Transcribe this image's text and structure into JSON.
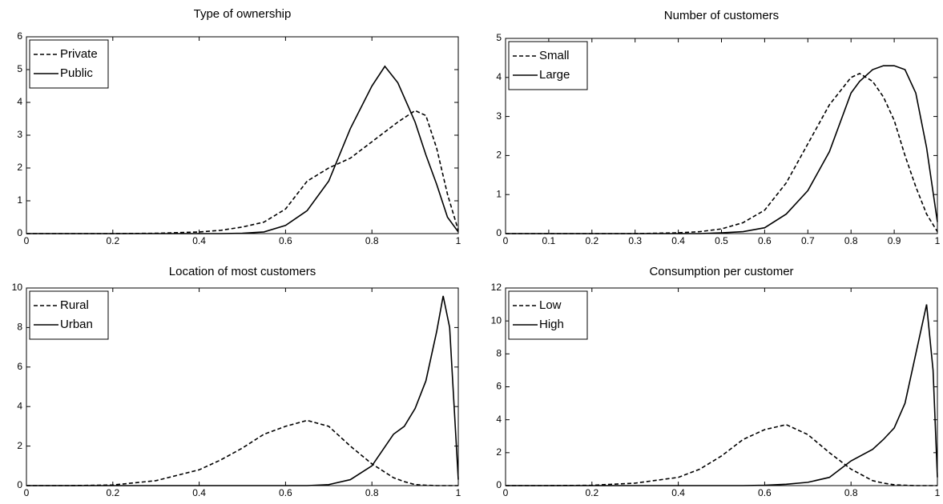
{
  "chart_data": [
    {
      "type": "line",
      "title": "Type of ownership",
      "x": [
        0,
        0.1,
        0.2,
        0.3,
        0.4,
        0.45,
        0.5,
        0.55,
        0.6,
        0.65,
        0.7,
        0.75,
        0.8,
        0.83,
        0.86,
        0.9,
        0.925,
        0.95,
        0.975,
        1
      ],
      "series": [
        {
          "name": "Private",
          "color": "#000000",
          "line_style": "dashed",
          "values": [
            0,
            0,
            0,
            0.01,
            0.05,
            0.1,
            0.2,
            0.35,
            0.75,
            1.6,
            2.0,
            2.3,
            2.8,
            3.1,
            3.4,
            3.75,
            3.6,
            2.6,
            1.2,
            0.1
          ]
        },
        {
          "name": "Public",
          "color": "#000000",
          "line_style": "solid",
          "values": [
            0,
            0,
            0,
            0,
            0,
            0,
            0.01,
            0.05,
            0.25,
            0.7,
            1.6,
            3.2,
            4.5,
            5.1,
            4.6,
            3.4,
            2.4,
            1.5,
            0.5,
            0.05
          ]
        }
      ],
      "xlim": [
        0,
        1
      ],
      "xticks": [
        0,
        0.2,
        0.4,
        0.6,
        0.8,
        1
      ],
      "ylim": [
        0,
        6
      ],
      "yticks": [
        0,
        1,
        2,
        3,
        4,
        5,
        6
      ],
      "legend": "upper left",
      "grid": false
    },
    {
      "type": "line",
      "title": "Number of customers",
      "x": [
        0,
        0.1,
        0.2,
        0.3,
        0.4,
        0.45,
        0.5,
        0.55,
        0.6,
        0.65,
        0.7,
        0.75,
        0.8,
        0.82,
        0.85,
        0.875,
        0.9,
        0.925,
        0.95,
        0.975,
        1
      ],
      "series": [
        {
          "name": "Small",
          "color": "#000000",
          "line_style": "dashed",
          "values": [
            0,
            0,
            0,
            0,
            0.02,
            0.05,
            0.12,
            0.28,
            0.6,
            1.3,
            2.3,
            3.3,
            4.0,
            4.1,
            3.9,
            3.5,
            2.9,
            2.0,
            1.2,
            0.5,
            0.05
          ]
        },
        {
          "name": "Large",
          "color": "#000000",
          "line_style": "solid",
          "values": [
            0,
            0,
            0,
            0,
            0,
            0,
            0.02,
            0.05,
            0.15,
            0.5,
            1.1,
            2.1,
            3.6,
            3.9,
            4.2,
            4.3,
            4.3,
            4.2,
            3.6,
            2.2,
            0.3
          ]
        }
      ],
      "xlim": [
        0,
        1
      ],
      "xticks": [
        0,
        0.1,
        0.2,
        0.3,
        0.4,
        0.5,
        0.6,
        0.7,
        0.8,
        0.9,
        1
      ],
      "ylim": [
        0,
        5
      ],
      "yticks": [
        0,
        1,
        2,
        3,
        4,
        5
      ],
      "legend": "upper left",
      "grid": false
    },
    {
      "type": "line",
      "title": "Location of most customers",
      "x": [
        0,
        0.1,
        0.2,
        0.3,
        0.4,
        0.45,
        0.5,
        0.55,
        0.6,
        0.65,
        0.7,
        0.75,
        0.8,
        0.85,
        0.875,
        0.9,
        0.925,
        0.95,
        0.965,
        0.98,
        1
      ],
      "series": [
        {
          "name": "Rural",
          "color": "#000000",
          "line_style": "dashed",
          "values": [
            0,
            0,
            0.03,
            0.25,
            0.8,
            1.3,
            1.9,
            2.6,
            3.0,
            3.3,
            3.0,
            2.0,
            1.1,
            0.4,
            0.2,
            0.05,
            0.02,
            0,
            0,
            0,
            0
          ]
        },
        {
          "name": "Urban",
          "color": "#000000",
          "line_style": "solid",
          "values": [
            0,
            0,
            0,
            0,
            0,
            0,
            0,
            0,
            0,
            0,
            0.05,
            0.3,
            1.0,
            2.6,
            3.0,
            3.9,
            5.3,
            7.8,
            9.6,
            8.0,
            0.3
          ]
        }
      ],
      "xlim": [
        0,
        1
      ],
      "xticks": [
        0,
        0.2,
        0.4,
        0.6,
        0.8,
        1
      ],
      "ylim": [
        0,
        10
      ],
      "yticks": [
        0,
        2,
        4,
        6,
        8,
        10
      ],
      "legend": "upper left",
      "grid": false
    },
    {
      "type": "line",
      "title": "Consumption per customer",
      "x": [
        0,
        0.1,
        0.2,
        0.3,
        0.4,
        0.45,
        0.5,
        0.55,
        0.6,
        0.65,
        0.7,
        0.75,
        0.8,
        0.85,
        0.875,
        0.9,
        0.925,
        0.95,
        0.975,
        0.99,
        1
      ],
      "series": [
        {
          "name": "Low",
          "color": "#000000",
          "line_style": "dashed",
          "values": [
            0,
            0,
            0.02,
            0.15,
            0.5,
            1.0,
            1.8,
            2.8,
            3.4,
            3.7,
            3.1,
            2.0,
            1.0,
            0.3,
            0.15,
            0.05,
            0.02,
            0,
            0,
            0,
            0
          ]
        },
        {
          "name": "High",
          "color": "#000000",
          "line_style": "solid",
          "values": [
            0,
            0,
            0,
            0,
            0,
            0,
            0,
            0,
            0.02,
            0.08,
            0.2,
            0.5,
            1.5,
            2.2,
            2.8,
            3.5,
            5.0,
            8.0,
            11.0,
            7.0,
            0.5
          ]
        }
      ],
      "xlim": [
        0,
        1
      ],
      "xticks": [
        0,
        0.2,
        0.4,
        0.6,
        0.8,
        1
      ],
      "ylim": [
        0,
        12
      ],
      "yticks": [
        0,
        2,
        4,
        6,
        8,
        10,
        12
      ],
      "legend": "upper left",
      "grid": false
    }
  ]
}
